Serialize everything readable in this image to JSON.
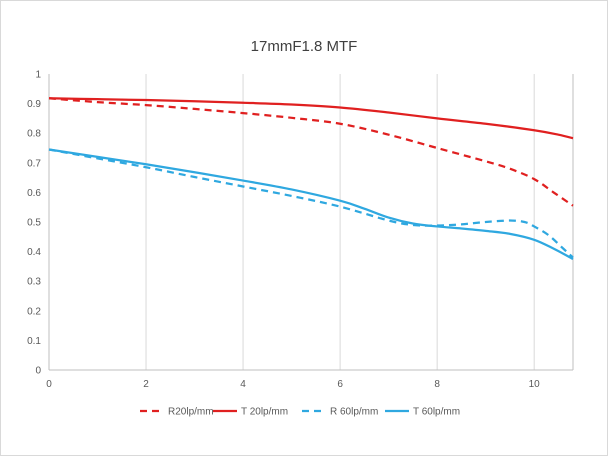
{
  "chart_data": {
    "type": "line",
    "title": "17mmF1.8  MTF",
    "xlabel": "",
    "ylabel": "",
    "xlim": [
      0,
      10.8
    ],
    "ylim": [
      0,
      1
    ],
    "xticks": [
      0,
      2,
      4,
      6,
      8,
      10
    ],
    "yticks": [
      0,
      0.1,
      0.2,
      0.3,
      0.4,
      0.5,
      0.6,
      0.7,
      0.8,
      0.9,
      1
    ],
    "grid": "vertical",
    "legend_position": "bottom",
    "series": [
      {
        "name": "R20lp/mm",
        "color": "#e02020",
        "dash": "dashed",
        "x": [
          0,
          1,
          2,
          3,
          4,
          5,
          6,
          7,
          8,
          9,
          9.5,
          10,
          10.4,
          10.8
        ],
        "y": [
          0.918,
          0.905,
          0.895,
          0.882,
          0.868,
          0.852,
          0.832,
          0.795,
          0.75,
          0.705,
          0.68,
          0.645,
          0.6,
          0.555
        ]
      },
      {
        "name": "T 20lp/mm",
        "color": "#e02020",
        "dash": "solid",
        "x": [
          0,
          1,
          2,
          3,
          4,
          5,
          6,
          7,
          8,
          9,
          10,
          10.5,
          10.8
        ],
        "y": [
          0.918,
          0.915,
          0.912,
          0.908,
          0.903,
          0.897,
          0.887,
          0.87,
          0.85,
          0.832,
          0.81,
          0.795,
          0.783
        ]
      },
      {
        "name": "R 60lp/mm",
        "color": "#2fa8e0",
        "dash": "dashed",
        "x": [
          0,
          1,
          2,
          3,
          4,
          5,
          6,
          7,
          7.5,
          8,
          8.5,
          9,
          9.5,
          9.8,
          10,
          10.3,
          10.6,
          10.8
        ],
        "y": [
          0.745,
          0.715,
          0.685,
          0.652,
          0.62,
          0.588,
          0.552,
          0.505,
          0.49,
          0.488,
          0.492,
          0.5,
          0.505,
          0.5,
          0.485,
          0.455,
          0.41,
          0.38
        ]
      },
      {
        "name": "T 60lp/mm",
        "color": "#2fa8e0",
        "dash": "solid",
        "x": [
          0,
          1,
          2,
          3,
          4,
          5,
          6,
          6.5,
          7,
          7.5,
          8,
          8.5,
          9,
          9.5,
          10,
          10.4,
          10.8
        ],
        "y": [
          0.745,
          0.72,
          0.695,
          0.668,
          0.64,
          0.61,
          0.572,
          0.545,
          0.515,
          0.495,
          0.485,
          0.478,
          0.47,
          0.46,
          0.44,
          0.41,
          0.375
        ]
      }
    ]
  }
}
